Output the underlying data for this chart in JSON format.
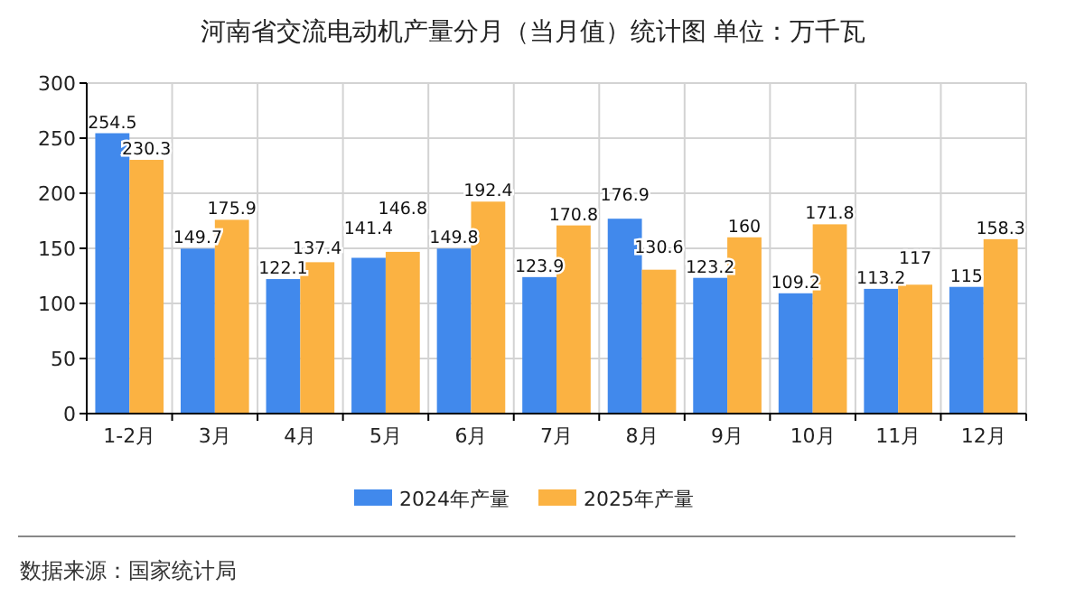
{
  "chart_data": {
    "type": "bar",
    "title": "河南省交流电动机产量分月（当月值）统计图 单位：万千瓦",
    "categories": [
      "1-2月",
      "3月",
      "4月",
      "5月",
      "6月",
      "7月",
      "8月",
      "9月",
      "10月",
      "11月",
      "12月"
    ],
    "series": [
      {
        "name": "2024年产量",
        "color": "#4189ec",
        "values": [
          254.5,
          149.7,
          122.1,
          141.4,
          149.8,
          123.9,
          176.9,
          123.2,
          109.2,
          113.2,
          115
        ]
      },
      {
        "name": "2025年产量",
        "color": "#fbb242",
        "values": [
          230.3,
          175.9,
          137.4,
          146.8,
          192.4,
          170.8,
          130.6,
          160,
          171.8,
          117,
          158.3
        ]
      }
    ],
    "ylim": [
      0,
      300
    ],
    "yticks": [
      0,
      50,
      100,
      150,
      200,
      250,
      300
    ],
    "grid": true,
    "legend": "bottom",
    "data_labels": true,
    "annotations": [
      "数据来源：国家统计局"
    ]
  }
}
